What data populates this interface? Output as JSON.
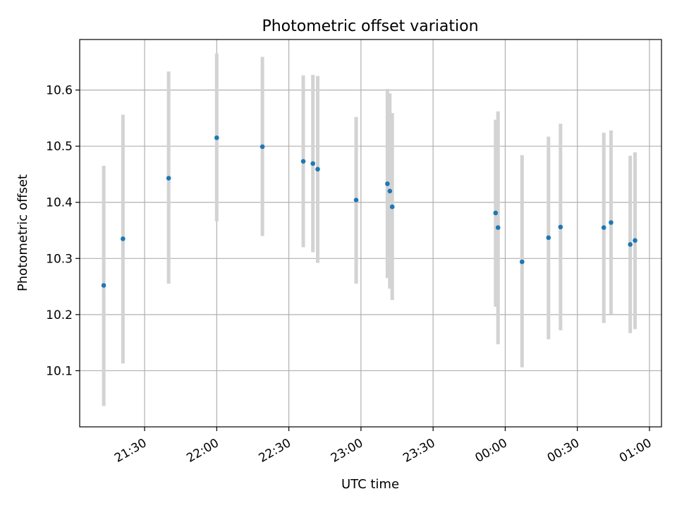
{
  "chart_data": {
    "type": "scatter",
    "title": "Photometric offset variation",
    "xlabel": "UTC time",
    "ylabel": "Photometric offset",
    "grid": true,
    "x_ticks": [
      "21:30",
      "22:00",
      "22:30",
      "23:00",
      "23:30",
      "00:00",
      "00:30",
      "01:00"
    ],
    "y_ticks": [
      10.1,
      10.2,
      10.3,
      10.4,
      10.5,
      10.6
    ],
    "xlim": [
      "21:03",
      "01:05"
    ],
    "ylim": [
      10.0,
      10.69
    ],
    "colors": {
      "point": "#1f77b4",
      "errorbar": "#d3d3d3",
      "grid": "#b0b0b0"
    },
    "series": [
      {
        "points": [
          {
            "time": "21:13",
            "value": 10.252,
            "err_low": 10.037,
            "err_high": 10.465
          },
          {
            "time": "21:21",
            "value": 10.335,
            "err_low": 10.113,
            "err_high": 10.556
          },
          {
            "time": "21:40",
            "value": 10.443,
            "err_low": 10.255,
            "err_high": 10.633
          },
          {
            "time": "22:00",
            "value": 10.515,
            "err_low": 10.366,
            "err_high": 10.665
          },
          {
            "time": "22:19",
            "value": 10.499,
            "err_low": 10.34,
            "err_high": 10.659
          },
          {
            "time": "22:36",
            "value": 10.473,
            "err_low": 10.32,
            "err_high": 10.626
          },
          {
            "time": "22:40",
            "value": 10.469,
            "err_low": 10.311,
            "err_high": 10.627
          },
          {
            "time": "22:42",
            "value": 10.459,
            "err_low": 10.292,
            "err_high": 10.625
          },
          {
            "time": "22:58",
            "value": 10.404,
            "err_low": 10.255,
            "err_high": 10.552
          },
          {
            "time": "23:11",
            "value": 10.433,
            "err_low": 10.265,
            "err_high": 10.602
          },
          {
            "time": "23:12",
            "value": 10.42,
            "err_low": 10.246,
            "err_high": 10.594
          },
          {
            "time": "23:13",
            "value": 10.392,
            "err_low": 10.226,
            "err_high": 10.559
          },
          {
            "time": "23:56",
            "value": 10.381,
            "err_low": 10.214,
            "err_high": 10.547
          },
          {
            "time": "23:57",
            "value": 10.355,
            "err_low": 10.147,
            "err_high": 10.562
          },
          {
            "time": "00:07",
            "value": 10.294,
            "err_low": 10.106,
            "err_high": 10.484
          },
          {
            "time": "00:18",
            "value": 10.337,
            "err_low": 10.156,
            "err_high": 10.517
          },
          {
            "time": "00:23",
            "value": 10.356,
            "err_low": 10.172,
            "err_high": 10.54
          },
          {
            "time": "00:41",
            "value": 10.355,
            "err_low": 10.185,
            "err_high": 10.524
          },
          {
            "time": "00:44",
            "value": 10.364,
            "err_low": 10.201,
            "err_high": 10.528
          },
          {
            "time": "00:52",
            "value": 10.325,
            "err_low": 10.167,
            "err_high": 10.483
          },
          {
            "time": "00:54",
            "value": 10.332,
            "err_low": 10.174,
            "err_high": 10.489
          }
        ]
      }
    ]
  }
}
